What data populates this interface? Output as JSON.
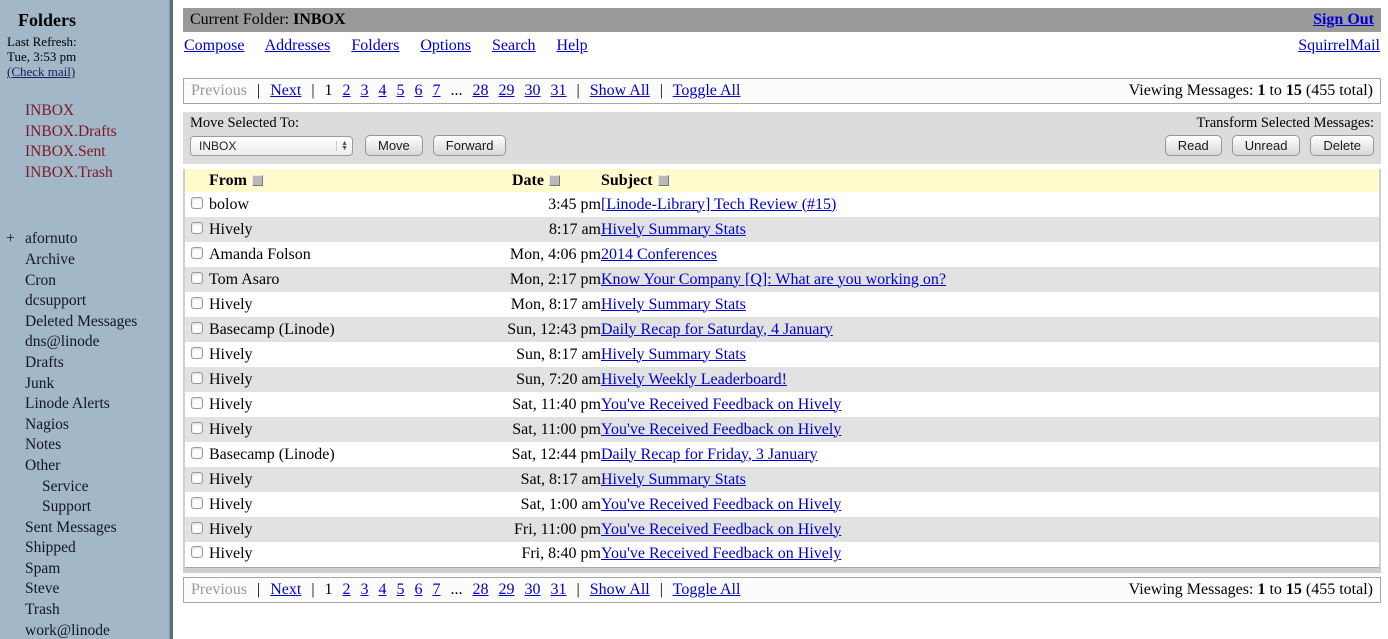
{
  "sidebar": {
    "title": "Folders",
    "last_refresh_label": "Last Refresh:",
    "last_refresh_time": "Tue, 3:53 pm",
    "check_mail": "(Check mail)",
    "special_folders": [
      {
        "label": "INBOX"
      },
      {
        "label": "INBOX.Drafts"
      },
      {
        "label": "INBOX.Sent"
      },
      {
        "label": "INBOX.Trash"
      }
    ],
    "folders": [
      {
        "prefix": "+",
        "label": "afornuto",
        "cls": ""
      },
      {
        "label": "Archive",
        "cls": ""
      },
      {
        "label": "Cron",
        "cls": ""
      },
      {
        "label": "dcsupport",
        "cls": ""
      },
      {
        "label": "Deleted Messages",
        "cls": ""
      },
      {
        "label": "dns@linode",
        "cls": ""
      },
      {
        "label": "Drafts",
        "cls": ""
      },
      {
        "label": "Junk",
        "cls": ""
      },
      {
        "label": "Linode Alerts",
        "cls": ""
      },
      {
        "label": "Nagios",
        "cls": ""
      },
      {
        "label": "Notes",
        "cls": ""
      },
      {
        "label": "Other",
        "cls": ""
      },
      {
        "label": "Service",
        "cls": "indent2"
      },
      {
        "label": "Support",
        "cls": "indent2"
      },
      {
        "label": "Sent Messages",
        "cls": ""
      },
      {
        "label": "Shipped",
        "cls": ""
      },
      {
        "label": "Spam",
        "cls": ""
      },
      {
        "label": "Steve",
        "cls": ""
      },
      {
        "label": "Trash",
        "cls": ""
      },
      {
        "label": "work@linode",
        "cls": ""
      }
    ]
  },
  "header": {
    "current_folder_label": "Current Folder: ",
    "current_folder": "INBOX",
    "sign_out": "Sign Out",
    "brand": "SquirrelMail",
    "nav": [
      {
        "label": "Compose"
      },
      {
        "label": "Addresses"
      },
      {
        "label": "Folders"
      },
      {
        "label": "Options"
      },
      {
        "label": "Search"
      },
      {
        "label": "Help"
      }
    ]
  },
  "pagination": {
    "segments": [
      {
        "t": "Previous",
        "cls": "pmuted",
        "inter": "false"
      },
      {
        "t": "|",
        "cls": "psep",
        "inter": "false"
      },
      {
        "t": "Next",
        "cls": "plink",
        "inter": "true"
      },
      {
        "t": "|",
        "cls": "psep",
        "inter": "false"
      },
      {
        "t": "1",
        "cls": "pcur",
        "inter": "false"
      },
      {
        "t": "2",
        "cls": "plink",
        "inter": "true"
      },
      {
        "t": "3",
        "cls": "plink",
        "inter": "true"
      },
      {
        "t": "4",
        "cls": "plink",
        "inter": "true"
      },
      {
        "t": "5",
        "cls": "plink",
        "inter": "true"
      },
      {
        "t": "6",
        "cls": "plink",
        "inter": "true"
      },
      {
        "t": "7",
        "cls": "plink",
        "inter": "true"
      },
      {
        "t": "...",
        "cls": "psep",
        "inter": "false"
      },
      {
        "t": "28",
        "cls": "plink",
        "inter": "true"
      },
      {
        "t": "29",
        "cls": "plink",
        "inter": "true"
      },
      {
        "t": "30",
        "cls": "plink",
        "inter": "true"
      },
      {
        "t": "31",
        "cls": "plink",
        "inter": "true"
      },
      {
        "t": "|",
        "cls": "psep",
        "inter": "false"
      },
      {
        "t": "Show All",
        "cls": "plink",
        "inter": "true"
      },
      {
        "t": "|",
        "cls": "psep",
        "inter": "false"
      },
      {
        "t": "Toggle All",
        "cls": "plink",
        "inter": "true"
      }
    ],
    "viewing_prefix": "Viewing Messages: ",
    "viewing_from": "1",
    "viewing_to_word": " to ",
    "viewing_to": "15",
    "viewing_total": " (455 total)"
  },
  "toolbar": {
    "move_label": "Move Selected To:",
    "transform_label": "Transform Selected Messages:",
    "folder_select_value": "INBOX",
    "move_button": "Move",
    "forward_button": "Forward",
    "read_button": "Read",
    "unread_button": "Unread",
    "delete_button": "Delete"
  },
  "table": {
    "columns": {
      "from": "From",
      "date": "Date",
      "subject": "Subject"
    },
    "rows": [
      {
        "from": "bolow",
        "date": "3:45 pm",
        "subject": "[Linode-Library] Tech Review (#15)"
      },
      {
        "from": "Hively",
        "date": "8:17 am",
        "subject": "Hively Summary Stats"
      },
      {
        "from": "Amanda Folson",
        "date": "Mon, 4:06 pm",
        "subject": "2014 Conferences"
      },
      {
        "from": "Tom Asaro",
        "date": "Mon, 2:17 pm",
        "subject": "Know Your Company [Q]: What are you working on?"
      },
      {
        "from": "Hively",
        "date": "Mon, 8:17 am",
        "subject": "Hively Summary Stats"
      },
      {
        "from": "Basecamp (Linode)",
        "date": "Sun, 12:43 pm",
        "subject": "Daily Recap for Saturday, 4 January"
      },
      {
        "from": "Hively",
        "date": "Sun, 8:17 am",
        "subject": "Hively Summary Stats"
      },
      {
        "from": "Hively",
        "date": "Sun, 7:20 am",
        "subject": "Hively Weekly Leaderboard!"
      },
      {
        "from": "Hively",
        "date": "Sat, 11:40 pm",
        "subject": "You've Received Feedback on Hively"
      },
      {
        "from": "Hively",
        "date": "Sat, 11:00 pm",
        "subject": "You've Received Feedback on Hively"
      },
      {
        "from": "Basecamp (Linode)",
        "date": "Sat, 12:44 pm",
        "subject": "Daily Recap for Friday, 3 January"
      },
      {
        "from": "Hively",
        "date": "Sat, 8:17 am",
        "subject": "Hively Summary Stats"
      },
      {
        "from": "Hively",
        "date": "Sat, 1:00 am",
        "subject": "You've Received Feedback on Hively"
      },
      {
        "from": "Hively",
        "date": "Fri, 11:00 pm",
        "subject": "You've Received Feedback on Hively"
      },
      {
        "from": "Hively",
        "date": "Fri, 8:40 pm",
        "subject": "You've Received Feedback on Hively"
      }
    ]
  },
  "colors": {
    "sidebar_bg": "#a2b7c7",
    "topbar_bg": "#9a9a9a",
    "toolbar_bg": "#dcdcdc",
    "header_row_bg": "#fffbcc",
    "alt_row_bg": "#e2e2e2",
    "link_blue": "#0000cc",
    "folder_maroon": "#7f1722"
  },
  "icons": {
    "stepper_up": "▲",
    "stepper_down": "▼"
  }
}
